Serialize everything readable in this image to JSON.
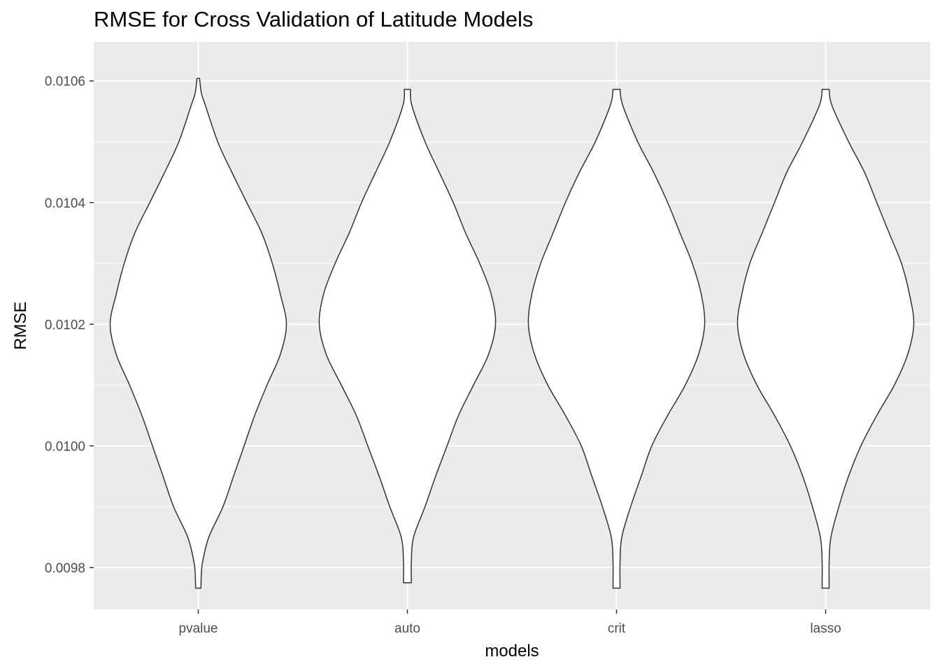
{
  "chart_data": {
    "type": "violin",
    "title": "RMSE for Cross Validation of Latitude Models",
    "xlabel": "models",
    "ylabel": "RMSE",
    "categories": [
      "pvalue",
      "auto",
      "crit",
      "lasso"
    ],
    "ylim": [
      0.009731,
      0.010664
    ],
    "y_ticks": [
      0.0098,
      0.01,
      0.0102,
      0.0104,
      0.0106
    ],
    "y_tick_labels": [
      "0.0098",
      "0.0100",
      "0.0102",
      "0.0104",
      "0.0106"
    ],
    "grid": true,
    "background": "#EBEBEB",
    "gridline_color": "#FFFFFF",
    "violin_fill": "#FFFFFF",
    "violin_outline": "#333333",
    "series": [
      {
        "category": "pvalue",
        "range": [
          0.009766,
          0.010604
        ],
        "profile": [
          [
            0.010604,
            0.015
          ],
          [
            0.01058,
            0.035
          ],
          [
            0.01056,
            0.08
          ],
          [
            0.0105,
            0.22
          ],
          [
            0.01045,
            0.38
          ],
          [
            0.0104,
            0.55
          ],
          [
            0.01035,
            0.72
          ],
          [
            0.0103,
            0.84
          ],
          [
            0.01025,
            0.93
          ],
          [
            0.0102,
            1.0
          ],
          [
            0.01015,
            0.93
          ],
          [
            0.0101,
            0.78
          ],
          [
            0.01005,
            0.64
          ],
          [
            0.01,
            0.52
          ],
          [
            0.00995,
            0.4
          ],
          [
            0.0099,
            0.28
          ],
          [
            0.00985,
            0.12
          ],
          [
            0.00981,
            0.05
          ],
          [
            0.00979,
            0.035
          ],
          [
            0.009766,
            0.03
          ]
        ]
      },
      {
        "category": "auto",
        "range": [
          0.009775,
          0.010586
        ],
        "profile": [
          [
            0.010586,
            0.035
          ],
          [
            0.01056,
            0.05
          ],
          [
            0.0105,
            0.2
          ],
          [
            0.01045,
            0.36
          ],
          [
            0.0104,
            0.52
          ],
          [
            0.01035,
            0.66
          ],
          [
            0.0103,
            0.82
          ],
          [
            0.01025,
            0.95
          ],
          [
            0.0102,
            1.0
          ],
          [
            0.01015,
            0.92
          ],
          [
            0.0101,
            0.75
          ],
          [
            0.01005,
            0.58
          ],
          [
            0.01,
            0.45
          ],
          [
            0.00995,
            0.32
          ],
          [
            0.0099,
            0.2
          ],
          [
            0.00985,
            0.07
          ],
          [
            0.00981,
            0.045
          ],
          [
            0.009775,
            0.045
          ]
        ]
      },
      {
        "category": "crit",
        "range": [
          0.009766,
          0.010586
        ],
        "profile": [
          [
            0.010586,
            0.04
          ],
          [
            0.01056,
            0.07
          ],
          [
            0.0105,
            0.24
          ],
          [
            0.01045,
            0.42
          ],
          [
            0.0104,
            0.58
          ],
          [
            0.01035,
            0.72
          ],
          [
            0.0103,
            0.86
          ],
          [
            0.01025,
            0.96
          ],
          [
            0.0102,
            1.0
          ],
          [
            0.01015,
            0.93
          ],
          [
            0.0101,
            0.78
          ],
          [
            0.01005,
            0.58
          ],
          [
            0.01,
            0.4
          ],
          [
            0.00995,
            0.28
          ],
          [
            0.0099,
            0.16
          ],
          [
            0.00985,
            0.06
          ],
          [
            0.00981,
            0.04
          ],
          [
            0.009766,
            0.04
          ]
        ]
      },
      {
        "category": "lasso",
        "range": [
          0.009766,
          0.010586
        ],
        "profile": [
          [
            0.010586,
            0.04
          ],
          [
            0.01056,
            0.07
          ],
          [
            0.0105,
            0.26
          ],
          [
            0.01045,
            0.44
          ],
          [
            0.0104,
            0.58
          ],
          [
            0.01035,
            0.72
          ],
          [
            0.0103,
            0.86
          ],
          [
            0.01025,
            0.95
          ],
          [
            0.0102,
            1.0
          ],
          [
            0.01015,
            0.93
          ],
          [
            0.0101,
            0.78
          ],
          [
            0.01005,
            0.58
          ],
          [
            0.01,
            0.4
          ],
          [
            0.00995,
            0.26
          ],
          [
            0.0099,
            0.15
          ],
          [
            0.00985,
            0.06
          ],
          [
            0.00981,
            0.04
          ],
          [
            0.009766,
            0.04
          ]
        ]
      }
    ]
  }
}
